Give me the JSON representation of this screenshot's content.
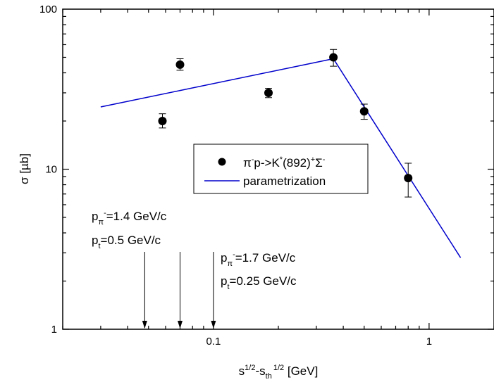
{
  "chart_data": {
    "type": "scatter",
    "x_scale": "log",
    "y_scale": "log",
    "xlim": [
      0.02,
      2
    ],
    "ylim": [
      1,
      100
    ],
    "x_ticks": [
      {
        "value": 0.1,
        "label": "0.1"
      },
      {
        "value": 1,
        "label": "1"
      }
    ],
    "y_ticks": [
      {
        "value": 1,
        "label": "1"
      },
      {
        "value": 10,
        "label": "10"
      },
      {
        "value": 100,
        "label": "100"
      }
    ],
    "xlabel": {
      "base": "s",
      "sup1": "1/2",
      "mid": "-s",
      "sub": "th",
      "sup2": "1/2",
      "tail": " [GeV]"
    },
    "ylabel": "σ [µb]",
    "grid": false,
    "legend_position": "center-right",
    "series": [
      {
        "name": {
          "a": "π",
          "a_sup": "-",
          "b": "p->K",
          "b_sup": "*",
          "c": "(892)",
          "c_sup": "+",
          "d": "Σ",
          "d_sup": "-"
        },
        "kind": "scatter",
        "points": [
          {
            "x": 0.058,
            "y": 20,
            "err_low": 1.9,
            "err_high": 2.2
          },
          {
            "x": 0.07,
            "y": 45,
            "err_low": 3.5,
            "err_high": 4
          },
          {
            "x": 0.18,
            "y": 30,
            "err_low": 2,
            "err_high": 2
          },
          {
            "x": 0.36,
            "y": 50,
            "err_low": 6,
            "err_high": 6
          },
          {
            "x": 0.5,
            "y": 23,
            "err_low": 2.5,
            "err_high": 2.5
          },
          {
            "x": 0.8,
            "y": 8.8,
            "err_low": 2.1,
            "err_high": 2.1
          }
        ],
        "color": "#000000"
      },
      {
        "name": "parametrization",
        "kind": "line",
        "points": [
          {
            "x": 0.03,
            "y": 24.5
          },
          {
            "x": 0.36,
            "y": 49
          },
          {
            "x": 1.4,
            "y": 2.8
          }
        ],
        "color": "#0000cc"
      }
    ],
    "annotations": [
      {
        "lines": [
          {
            "base": "p",
            "sub": "π",
            "sup": "-",
            "rest": "=1.4 GeV/c"
          },
          {
            "base": "p",
            "sub": "t",
            "sup": "",
            "rest": "=0.5 GeV/c"
          }
        ],
        "arrows_x": [
          0.048,
          0.07
        ]
      },
      {
        "lines": [
          {
            "base": "p",
            "sub": "π",
            "sup": "-",
            "rest": "=1.7 GeV/c"
          },
          {
            "base": "p",
            "sub": "t",
            "sup": "",
            "rest": "=0.25 GeV/c"
          }
        ],
        "arrows_x": [
          0.1
        ]
      }
    ]
  }
}
